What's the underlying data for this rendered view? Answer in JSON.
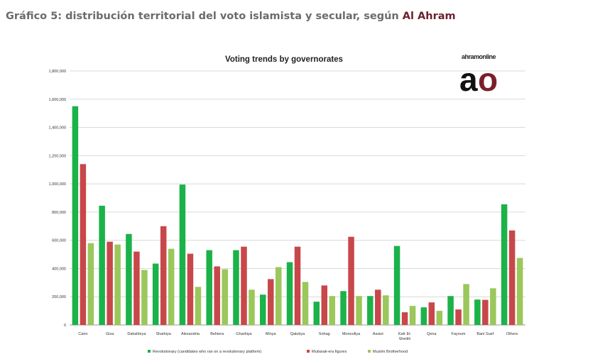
{
  "caption": {
    "text": "Gráfico 5: distribución territorial del voto islamista y secular, según ",
    "source": "Al Ahram"
  },
  "logo": {
    "small": "ahramonline",
    "big_a": "a",
    "big_o": "o"
  },
  "chart_data": {
    "type": "bar",
    "title": "Voting trends by governorates",
    "xlabel": "",
    "ylabel": "",
    "ylim": [
      0,
      1800000
    ],
    "yticks": [
      "0",
      "200,000",
      "400,000",
      "600,000",
      "800,000",
      "1,000,000",
      "1,200,000",
      "1,400,000",
      "1,600,000",
      "1,800,000"
    ],
    "grid": true,
    "legend_position": "bottom",
    "categories": [
      "Cairo",
      "Giza",
      "Dakahleya",
      "Sharkiya",
      "Alexandria",
      "Behiera",
      "Gharbiya",
      "Minya",
      "Qalubya",
      "Sohag",
      "Monoufiya",
      "Assiut",
      "Kafr El-Sheikh",
      "Qena",
      "Fayoum",
      "Bani Suef",
      "Others"
    ],
    "series": [
      {
        "name": "Revolutionary (candidates who ran on a revolutionary platform)",
        "color": "#1bb24a",
        "values": [
          1550000,
          845000,
          645000,
          435000,
          995000,
          530000,
          530000,
          215000,
          445000,
          165000,
          240000,
          205000,
          560000,
          125000,
          205000,
          180000,
          855000
        ]
      },
      {
        "name": "Mubarak-era figures",
        "color": "#c8474a",
        "values": [
          1140000,
          590000,
          520000,
          700000,
          505000,
          415000,
          555000,
          325000,
          555000,
          280000,
          625000,
          250000,
          90000,
          160000,
          110000,
          178000,
          670000
        ]
      },
      {
        "name": "Muslim Brotherhood",
        "color": "#9bc75b",
        "values": [
          580000,
          570000,
          390000,
          540000,
          270000,
          395000,
          250000,
          410000,
          305000,
          205000,
          205000,
          210000,
          135000,
          100000,
          290000,
          260000,
          475000
        ]
      }
    ]
  }
}
